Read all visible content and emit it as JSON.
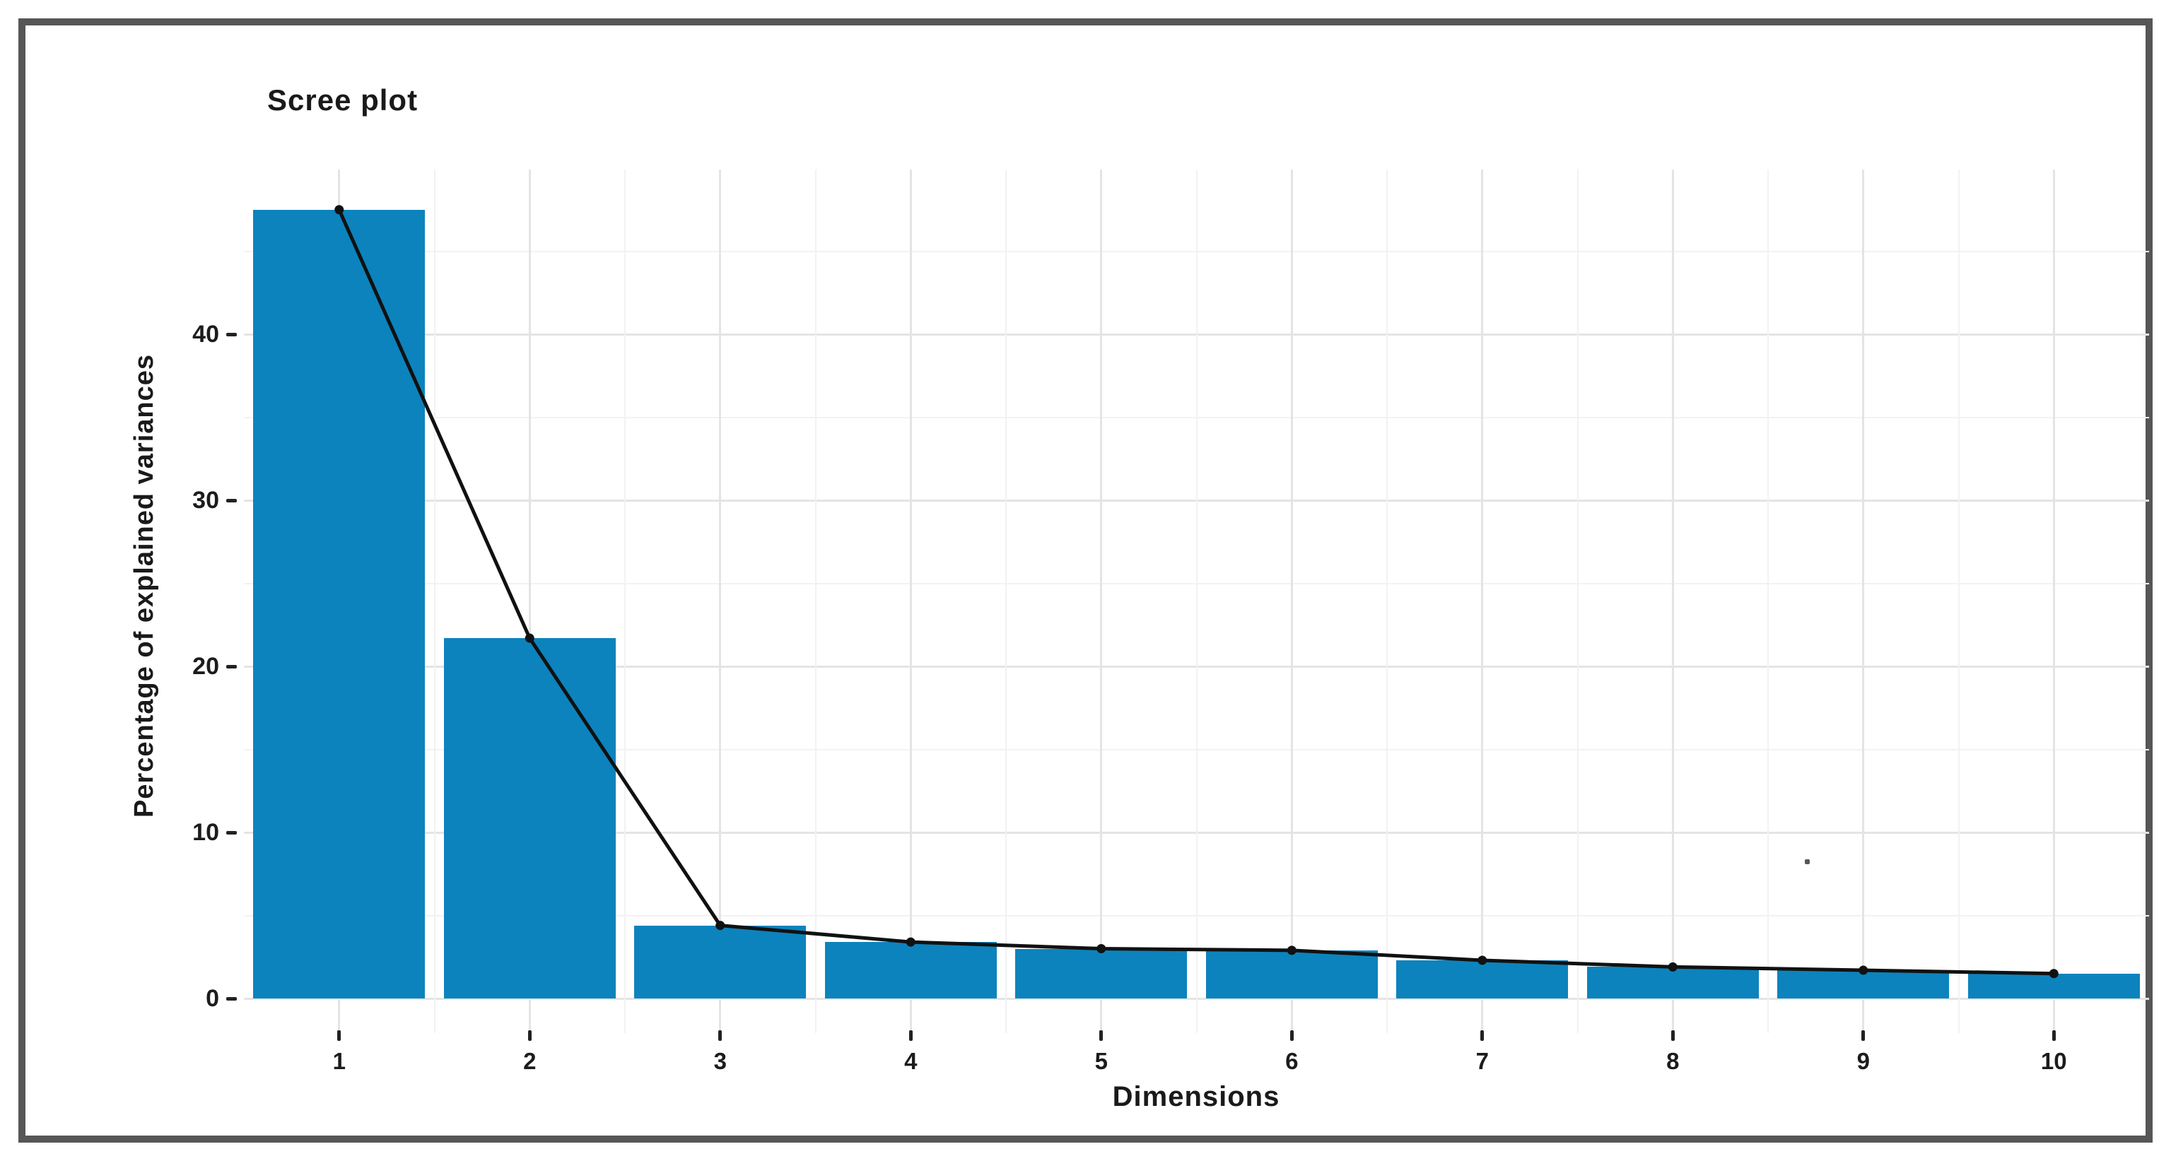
{
  "figure": {
    "background": "#ffffff",
    "border_color": "#565656"
  },
  "chart_data": {
    "type": "bar",
    "subtype": "bar-with-line-overlay (scree plot)",
    "title": "Scree plot",
    "xlabel": "Dimensions",
    "ylabel": "Percentage of explained variances",
    "categories": [
      "1",
      "2",
      "3",
      "4",
      "5",
      "6",
      "7",
      "8",
      "9",
      "10"
    ],
    "values": [
      47.5,
      21.7,
      4.4,
      3.4,
      3.0,
      2.9,
      2.3,
      1.9,
      1.7,
      1.5
    ],
    "line_overlay": true,
    "ylim": [
      0,
      49.9
    ],
    "y_ticks": [
      0,
      10,
      20,
      30,
      40
    ],
    "y_minor_ticks": [
      5,
      15,
      25,
      35,
      45
    ],
    "grid": "major and minor, light gray on white",
    "legend_position": "none",
    "colors": {
      "bar_fill": "#0c83bd",
      "line": "#111111",
      "point": "#111111",
      "grid_major": "#e4e4e4",
      "grid_minor": "#f2f2f2",
      "axis_text": "#1c1c1c",
      "tick_mark": "#222222"
    }
  }
}
